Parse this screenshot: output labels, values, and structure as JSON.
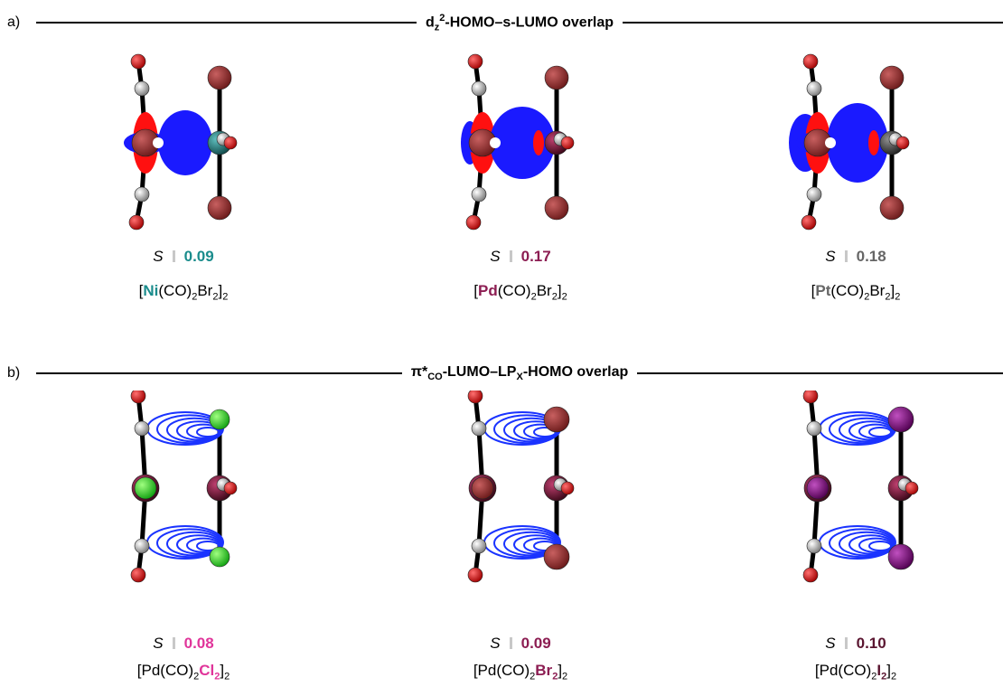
{
  "panels": [
    {
      "label": "a)",
      "title": [
        "d",
        "z",
        "2",
        "-HOMO–s-LUMO overlap"
      ],
      "items": [
        {
          "s_label": "S",
          "value": "0.09",
          "color": "#1a8c8c",
          "formula": [
            "[",
            "Ni",
            "(CO)",
            "2",
            "Br",
            "2",
            "]",
            "2"
          ]
        },
        {
          "s_label": "S",
          "value": "0.17",
          "color": "#8c1d52",
          "formula": [
            "[",
            "Pd",
            "(CO)",
            "2",
            "Br",
            "2",
            "]",
            "2"
          ]
        },
        {
          "s_label": "S",
          "value": "0.18",
          "color": "#666666",
          "formula": [
            "[",
            "Pt",
            "(CO)",
            "2",
            "Br",
            "2",
            "]",
            "2"
          ]
        }
      ]
    },
    {
      "label": "b)",
      "title": [
        "π*",
        "CO",
        "-LUMO–LP",
        "X",
        "-HOMO overlap"
      ],
      "items": [
        {
          "s_label": "S",
          "value": "0.08",
          "color": "#e0359a",
          "formula": [
            "[Pd(CO)",
            "2",
            "Cl",
            "2",
            "]",
            "2"
          ]
        },
        {
          "s_label": "S",
          "value": "0.09",
          "color": "#8c1d52",
          "formula": [
            "[Pd(CO)",
            "2",
            "Br",
            "2",
            "]",
            "2"
          ]
        },
        {
          "s_label": "S",
          "value": "0.10",
          "color": "#5a1530",
          "formula": [
            "[Pd(CO)",
            "2",
            "I",
            "2",
            "]",
            "2"
          ]
        }
      ]
    }
  ]
}
